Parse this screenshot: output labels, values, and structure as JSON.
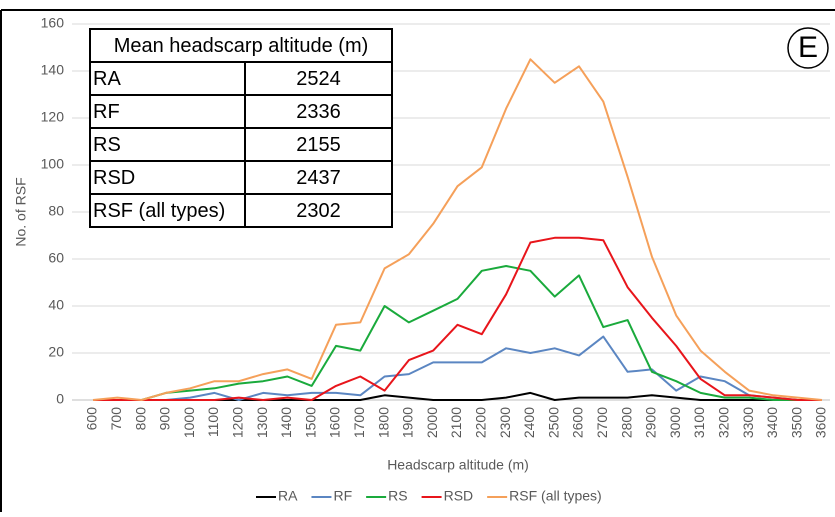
{
  "chart_data": {
    "type": "line",
    "xlabel": "Headscarp altitude (m)",
    "ylabel": "No. of RSF",
    "annotation": "E",
    "categories": [
      "600",
      "700",
      "800",
      "900",
      "1000",
      "1100",
      "1200",
      "1300",
      "1400",
      "1500",
      "1600",
      "1700",
      "1800",
      "1900",
      "2000",
      "2100",
      "2200",
      "2300",
      "2400",
      "2500",
      "2600",
      "2700",
      "2800",
      "2900",
      "3000",
      "3100",
      "3200",
      "3300",
      "3400",
      "3500",
      "3600"
    ],
    "series": [
      {
        "name": "RA",
        "color": "#000000",
        "values": [
          0,
          0,
          0,
          0,
          0,
          0,
          0,
          0,
          0,
          0,
          0,
          0,
          2,
          1,
          0,
          0,
          0,
          1,
          3,
          0,
          1,
          1,
          1,
          2,
          1,
          0,
          0,
          0,
          0,
          0,
          0
        ]
      },
      {
        "name": "RF",
        "color": "#5b86c2",
        "values": [
          0,
          0,
          0,
          0,
          1,
          3,
          0,
          3,
          2,
          3,
          3,
          2,
          10,
          11,
          16,
          16,
          16,
          22,
          20,
          22,
          19,
          27,
          12,
          13,
          4,
          10,
          8,
          2,
          1,
          0,
          0
        ]
      },
      {
        "name": "RS",
        "color": "#1aaa3c",
        "values": [
          0,
          0,
          0,
          3,
          4,
          5,
          7,
          8,
          10,
          6,
          23,
          21,
          40,
          33,
          38,
          43,
          55,
          57,
          55,
          44,
          53,
          31,
          34,
          12,
          8,
          3,
          1,
          1,
          0,
          0,
          0
        ]
      },
      {
        "name": "RSD",
        "color": "#e8151b",
        "values": [
          0,
          0,
          0,
          0,
          0,
          0,
          1,
          0,
          1,
          0,
          6,
          10,
          4,
          17,
          21,
          32,
          28,
          45,
          67,
          69,
          69,
          68,
          48,
          35,
          23,
          9,
          2,
          2,
          1,
          0,
          0
        ]
      },
      {
        "name": "RSF (all types)",
        "color": "#f5a05a",
        "values": [
          0,
          1,
          0,
          3,
          5,
          8,
          8,
          11,
          13,
          9,
          32,
          33,
          56,
          62,
          75,
          91,
          99,
          124,
          145,
          135,
          142,
          127,
          95,
          61,
          36,
          21,
          12,
          4,
          2,
          1,
          0
        ]
      }
    ],
    "ylim": [
      0,
      160
    ],
    "yticks": [
      0,
      20,
      40,
      60,
      80,
      100,
      120,
      140,
      160
    ],
    "grid": true,
    "legend": "bottom",
    "table": {
      "header": "Mean headscarp altitude (m)",
      "rows": [
        [
          "RA",
          2524
        ],
        [
          "RF",
          2336
        ],
        [
          "RS",
          2155
        ],
        [
          "RSD",
          2437
        ],
        [
          "RSF (all types)",
          2302
        ]
      ]
    }
  }
}
